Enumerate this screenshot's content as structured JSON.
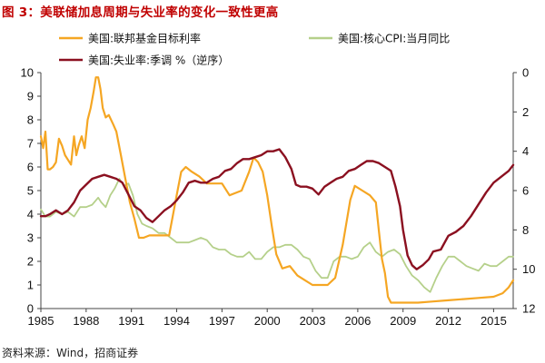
{
  "title": "图 3：美联储加息周期与失业率的变化一致性更高",
  "source": "资料来源：Wind，招商证券",
  "colors": {
    "fed_rate": "#F5A623",
    "core_cpi": "#B5D08A",
    "unemployment": "#8B1020",
    "axis": "#444444",
    "title": "#C00000"
  },
  "chart_data": {
    "type": "line",
    "title": "图 3：美联储加息周期与失业率的变化一致性更高",
    "xlabel": "",
    "ylabel": "",
    "x_ticks": [
      "1985",
      "1988",
      "1991",
      "1994",
      "1997",
      "2000",
      "2003",
      "2006",
      "2009",
      "2012",
      "2015"
    ],
    "xlim": [
      1985,
      2016.3
    ],
    "y_left_ticks": [
      "0",
      "1",
      "2",
      "3",
      "4",
      "5",
      "6",
      "7",
      "8",
      "9",
      "10"
    ],
    "ylim_left": [
      0,
      10
    ],
    "y_right_ticks": [
      "0",
      "2",
      "4",
      "6",
      "8",
      "10",
      "12"
    ],
    "ylim_right": [
      12,
      0
    ],
    "y_right_inverted": true,
    "grid": false,
    "legend_position": "top",
    "series": [
      {
        "name": "美国:联邦基金目标利率",
        "axis": "left",
        "color": "#F5A623",
        "points": [
          [
            1985.0,
            7.3
          ],
          [
            1985.15,
            6.8
          ],
          [
            1985.3,
            7.5
          ],
          [
            1985.45,
            5.9
          ],
          [
            1985.6,
            5.9
          ],
          [
            1985.8,
            6.0
          ],
          [
            1986.0,
            6.2
          ],
          [
            1986.2,
            7.2
          ],
          [
            1986.4,
            6.9
          ],
          [
            1986.6,
            6.5
          ],
          [
            1986.8,
            6.3
          ],
          [
            1987.0,
            6.1
          ],
          [
            1987.2,
            7.3
          ],
          [
            1987.35,
            6.5
          ],
          [
            1987.5,
            6.9
          ],
          [
            1987.7,
            7.3
          ],
          [
            1987.9,
            6.8
          ],
          [
            1988.1,
            8.0
          ],
          [
            1988.3,
            8.5
          ],
          [
            1988.5,
            9.2
          ],
          [
            1988.65,
            9.8
          ],
          [
            1988.8,
            9.8
          ],
          [
            1988.95,
            9.3
          ],
          [
            1989.1,
            8.5
          ],
          [
            1989.3,
            8.1
          ],
          [
            1989.5,
            8.2
          ],
          [
            1989.8,
            7.8
          ],
          [
            1990.0,
            7.5
          ],
          [
            1990.3,
            6.5
          ],
          [
            1990.6,
            5.5
          ],
          [
            1990.9,
            4.5
          ],
          [
            1991.2,
            3.8
          ],
          [
            1991.5,
            3.0
          ],
          [
            1991.8,
            3.0
          ],
          [
            1992.2,
            3.1
          ],
          [
            1992.6,
            3.1
          ],
          [
            1993.0,
            3.1
          ],
          [
            1993.5,
            3.1
          ],
          [
            1994.0,
            4.8
          ],
          [
            1994.3,
            5.8
          ],
          [
            1994.6,
            6.0
          ],
          [
            1995.0,
            5.8
          ],
          [
            1995.5,
            5.6
          ],
          [
            1996.0,
            5.3
          ],
          [
            1996.5,
            5.3
          ],
          [
            1997.0,
            5.3
          ],
          [
            1997.5,
            4.8
          ],
          [
            1997.9,
            4.9
          ],
          [
            1998.3,
            5.0
          ],
          [
            1998.8,
            5.8
          ],
          [
            1999.1,
            6.4
          ],
          [
            1999.4,
            6.2
          ],
          [
            1999.7,
            5.8
          ],
          [
            2000.0,
            4.8
          ],
          [
            2000.3,
            3.5
          ],
          [
            2000.6,
            2.3
          ],
          [
            2001.0,
            1.7
          ],
          [
            2001.5,
            1.8
          ],
          [
            2002.0,
            1.4
          ],
          [
            2002.5,
            1.2
          ],
          [
            2003.0,
            1.0
          ],
          [
            2003.5,
            1.0
          ],
          [
            2004.0,
            1.0
          ],
          [
            2004.5,
            1.3
          ],
          [
            2005.0,
            2.7
          ],
          [
            2005.5,
            4.6
          ],
          [
            2005.8,
            5.2
          ],
          [
            2006.3,
            5.0
          ],
          [
            2006.8,
            4.8
          ],
          [
            2007.2,
            4.5
          ],
          [
            2007.4,
            3.3
          ],
          [
            2007.6,
            2.1
          ],
          [
            2007.8,
            1.5
          ],
          [
            2008.0,
            0.5
          ],
          [
            2008.2,
            0.25
          ],
          [
            2009.0,
            0.25
          ],
          [
            2010.0,
            0.25
          ],
          [
            2011.0,
            0.3
          ],
          [
            2012.0,
            0.35
          ],
          [
            2013.0,
            0.4
          ],
          [
            2014.0,
            0.45
          ],
          [
            2015.0,
            0.5
          ],
          [
            2015.6,
            0.65
          ],
          [
            2016.0,
            0.9
          ],
          [
            2016.3,
            1.2
          ]
        ]
      },
      {
        "name": "美国:核心CPI:当月同比",
        "axis": "left",
        "color": "#B5D08A",
        "points": [
          [
            1985.0,
            4.2
          ],
          [
            1985.3,
            3.9
          ],
          [
            1985.6,
            3.9
          ],
          [
            1986.0,
            4.1
          ],
          [
            1986.4,
            4.0
          ],
          [
            1986.8,
            4.1
          ],
          [
            1987.2,
            3.9
          ],
          [
            1987.6,
            4.3
          ],
          [
            1988.0,
            4.3
          ],
          [
            1988.4,
            4.4
          ],
          [
            1988.8,
            4.7
          ],
          [
            1989.0,
            4.5
          ],
          [
            1989.3,
            4.3
          ],
          [
            1989.6,
            4.8
          ],
          [
            1989.9,
            5.1
          ],
          [
            1990.2,
            5.5
          ],
          [
            1990.5,
            5.2
          ],
          [
            1990.8,
            5.3
          ],
          [
            1991.1,
            4.8
          ],
          [
            1991.4,
            4.0
          ],
          [
            1991.7,
            3.6
          ],
          [
            1992.0,
            3.5
          ],
          [
            1992.4,
            3.4
          ],
          [
            1992.8,
            3.2
          ],
          [
            1993.2,
            3.2
          ],
          [
            1993.6,
            3.0
          ],
          [
            1994.0,
            2.8
          ],
          [
            1994.4,
            2.8
          ],
          [
            1994.8,
            2.8
          ],
          [
            1995.2,
            2.9
          ],
          [
            1995.6,
            3.0
          ],
          [
            1996.0,
            2.9
          ],
          [
            1996.4,
            2.6
          ],
          [
            1996.8,
            2.5
          ],
          [
            1997.2,
            2.5
          ],
          [
            1997.6,
            2.3
          ],
          [
            1998.0,
            2.2
          ],
          [
            1998.4,
            2.2
          ],
          [
            1998.8,
            2.4
          ],
          [
            1999.2,
            2.1
          ],
          [
            1999.6,
            2.1
          ],
          [
            2000.0,
            2.4
          ],
          [
            2000.4,
            2.6
          ],
          [
            2000.8,
            2.6
          ],
          [
            2001.2,
            2.7
          ],
          [
            2001.6,
            2.7
          ],
          [
            2002.0,
            2.5
          ],
          [
            2002.4,
            2.2
          ],
          [
            2002.8,
            2.1
          ],
          [
            2003.2,
            1.6
          ],
          [
            2003.6,
            1.3
          ],
          [
            2004.0,
            1.3
          ],
          [
            2004.4,
            2.0
          ],
          [
            2004.8,
            2.2
          ],
          [
            2005.2,
            2.2
          ],
          [
            2005.6,
            2.1
          ],
          [
            2006.0,
            2.2
          ],
          [
            2006.4,
            2.6
          ],
          [
            2006.8,
            2.8
          ],
          [
            2007.2,
            2.4
          ],
          [
            2007.6,
            2.2
          ],
          [
            2008.0,
            2.4
          ],
          [
            2008.4,
            2.5
          ],
          [
            2008.8,
            2.3
          ],
          [
            2009.2,
            1.8
          ],
          [
            2009.6,
            1.4
          ],
          [
            2010.0,
            1.2
          ],
          [
            2010.4,
            0.9
          ],
          [
            2010.8,
            0.7
          ],
          [
            2011.2,
            1.3
          ],
          [
            2011.6,
            1.8
          ],
          [
            2012.0,
            2.2
          ],
          [
            2012.4,
            2.2
          ],
          [
            2012.8,
            2.0
          ],
          [
            2013.2,
            1.8
          ],
          [
            2013.6,
            1.7
          ],
          [
            2014.0,
            1.6
          ],
          [
            2014.4,
            1.9
          ],
          [
            2014.8,
            1.8
          ],
          [
            2015.2,
            1.8
          ],
          [
            2015.6,
            2.0
          ],
          [
            2016.0,
            2.2
          ],
          [
            2016.3,
            2.2
          ]
        ]
      },
      {
        "name": "美国:失业率:季调 %（逆序）",
        "axis": "right",
        "color": "#8B1020",
        "points": [
          [
            1985.0,
            7.3
          ],
          [
            1985.3,
            7.3
          ],
          [
            1985.6,
            7.2
          ],
          [
            1986.0,
            7.0
          ],
          [
            1986.4,
            7.2
          ],
          [
            1986.8,
            7.0
          ],
          [
            1987.2,
            6.6
          ],
          [
            1987.6,
            6.0
          ],
          [
            1988.0,
            5.7
          ],
          [
            1988.4,
            5.4
          ],
          [
            1988.8,
            5.3
          ],
          [
            1989.2,
            5.2
          ],
          [
            1989.6,
            5.3
          ],
          [
            1990.0,
            5.4
          ],
          [
            1990.4,
            5.6
          ],
          [
            1990.8,
            6.2
          ],
          [
            1991.2,
            6.8
          ],
          [
            1991.6,
            7.0
          ],
          [
            1992.0,
            7.4
          ],
          [
            1992.4,
            7.6
          ],
          [
            1992.8,
            7.3
          ],
          [
            1993.2,
            7.0
          ],
          [
            1993.6,
            6.8
          ],
          [
            1994.0,
            6.5
          ],
          [
            1994.4,
            6.1
          ],
          [
            1994.8,
            5.6
          ],
          [
            1995.2,
            5.5
          ],
          [
            1995.6,
            5.6
          ],
          [
            1996.0,
            5.6
          ],
          [
            1996.4,
            5.4
          ],
          [
            1996.8,
            5.3
          ],
          [
            1997.2,
            5.0
          ],
          [
            1997.6,
            4.9
          ],
          [
            1998.0,
            4.6
          ],
          [
            1998.4,
            4.4
          ],
          [
            1998.8,
            4.4
          ],
          [
            1999.2,
            4.3
          ],
          [
            1999.6,
            4.2
          ],
          [
            2000.0,
            4.0
          ],
          [
            2000.4,
            4.0
          ],
          [
            2000.8,
            3.9
          ],
          [
            2001.2,
            4.3
          ],
          [
            2001.6,
            4.9
          ],
          [
            2001.9,
            5.7
          ],
          [
            2002.2,
            5.8
          ],
          [
            2002.6,
            5.8
          ],
          [
            2003.0,
            5.9
          ],
          [
            2003.4,
            6.2
          ],
          [
            2003.8,
            5.8
          ],
          [
            2004.2,
            5.6
          ],
          [
            2004.6,
            5.4
          ],
          [
            2005.0,
            5.3
          ],
          [
            2005.4,
            5.0
          ],
          [
            2005.8,
            4.9
          ],
          [
            2006.2,
            4.7
          ],
          [
            2006.6,
            4.5
          ],
          [
            2007.0,
            4.5
          ],
          [
            2007.4,
            4.6
          ],
          [
            2007.8,
            4.8
          ],
          [
            2008.2,
            5.0
          ],
          [
            2008.5,
            5.8
          ],
          [
            2008.8,
            6.8
          ],
          [
            2009.0,
            8.0
          ],
          [
            2009.3,
            9.3
          ],
          [
            2009.6,
            9.8
          ],
          [
            2009.9,
            10.0
          ],
          [
            2010.3,
            9.8
          ],
          [
            2010.7,
            9.5
          ],
          [
            2011.0,
            9.1
          ],
          [
            2011.5,
            9.0
          ],
          [
            2012.0,
            8.3
          ],
          [
            2012.5,
            8.1
          ],
          [
            2013.0,
            7.8
          ],
          [
            2013.5,
            7.3
          ],
          [
            2014.0,
            6.7
          ],
          [
            2014.5,
            6.1
          ],
          [
            2015.0,
            5.6
          ],
          [
            2015.5,
            5.3
          ],
          [
            2016.0,
            5.0
          ],
          [
            2016.3,
            4.7
          ]
        ]
      }
    ]
  }
}
